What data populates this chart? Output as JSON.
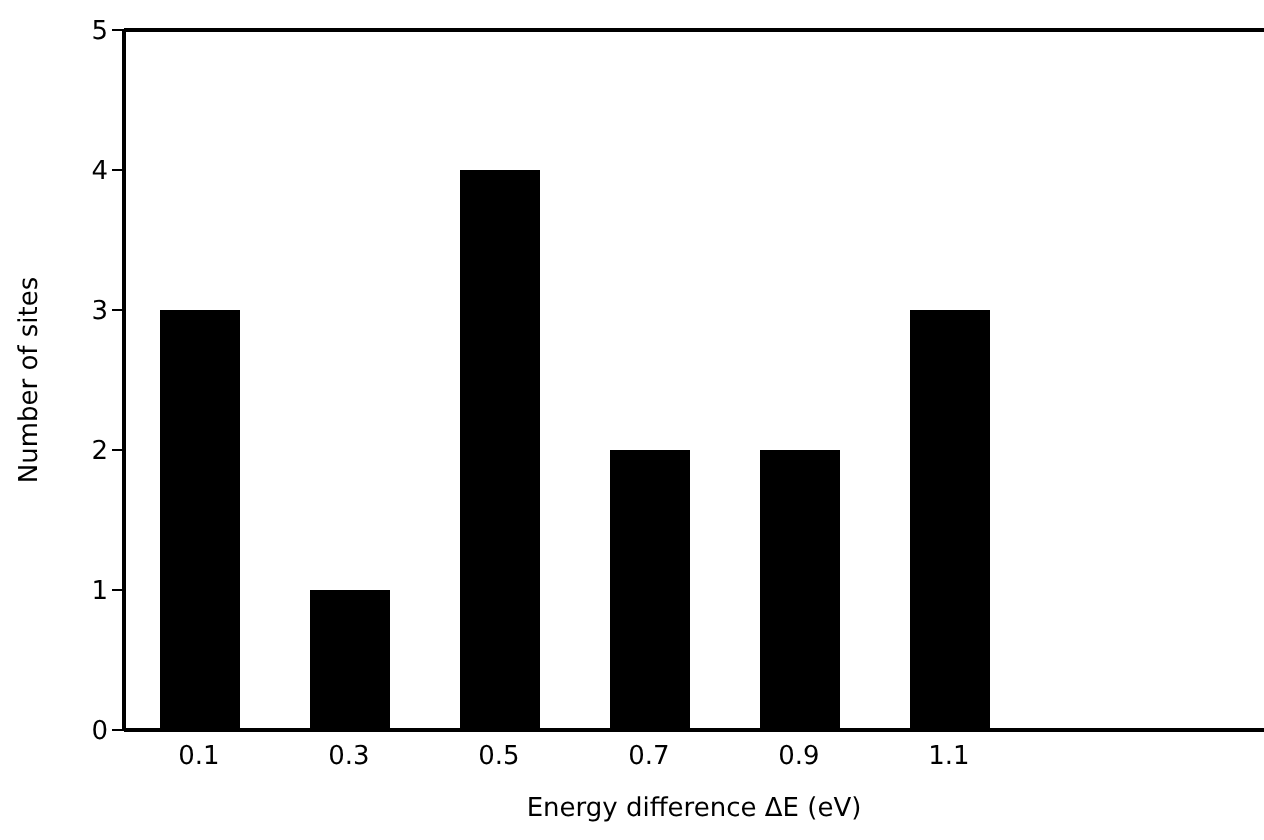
{
  "chart_data": {
    "type": "bar",
    "xlabel": "Energy difference ΔE (eV)",
    "ylabel": "Number of sites",
    "x": [
      0.1,
      0.3,
      0.5,
      0.7,
      0.9,
      1.1
    ],
    "values": [
      3,
      1,
      4,
      2,
      2,
      3
    ],
    "color": "#000000",
    "xlim": [
      0,
      1.52
    ],
    "xticks": [
      0.1,
      0.3,
      0.5,
      0.7,
      0.9,
      1.1
    ],
    "ylim": [
      0,
      5
    ],
    "yticks": [
      0,
      1,
      2,
      3,
      4,
      5
    ],
    "grid": false,
    "legend": false
  }
}
